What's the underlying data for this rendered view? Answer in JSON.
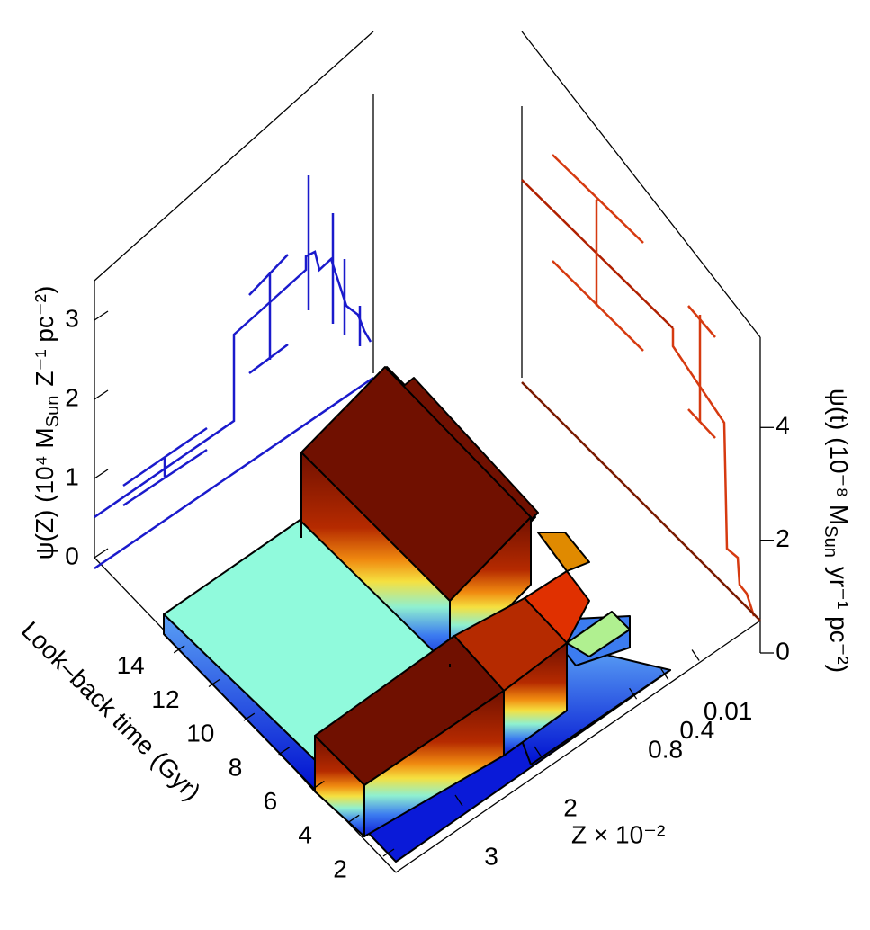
{
  "chart_data": {
    "type": "lego3d",
    "y_label": {
      "main": "ψ(Z) (10⁴ M",
      "sub": "Sun",
      "rest": "Z⁻¹ pc⁻²)"
    },
    "y2_label": {
      "main": "ψ(t) (10⁻⁸ M",
      "sub": "Sun",
      "rest": "yr⁻¹ pc⁻²)"
    },
    "x_label": "Look–back time (Gyr)",
    "z_label": "Z × 10⁻²",
    "ylim": [
      0,
      3.5
    ],
    "yticks": [
      0,
      1,
      2,
      3
    ],
    "y2lim": [
      0,
      5.6
    ],
    "y2ticks": [
      0,
      2,
      4
    ],
    "xlim": [
      1,
      16
    ],
    "xticks": [
      2,
      4,
      6,
      8,
      10,
      12,
      14
    ],
    "zticks": [
      0.01,
      0.4,
      0.8,
      2,
      3
    ],
    "y_color": "#1a1acc",
    "y2_color": "#d63a10"
  }
}
